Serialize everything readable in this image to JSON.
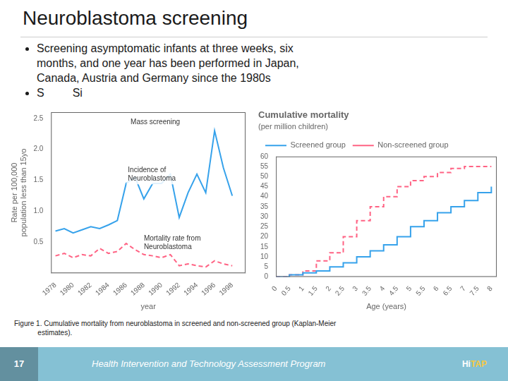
{
  "title": "Neuroblastoma screening",
  "bullets": [
    [
      "Screening asymptomatic infants at three weeks, six",
      "months, and one year has been performed in Japan,",
      "Canada, Austria and Germany since the 1980s"
    ],
    [
      "S",
      "Si"
    ]
  ],
  "caption": "Figure 1. Cumulative mortality from neuroblastoma in screened and non-screened group (Kaplan-Meier\n            estimates).",
  "footer": {
    "page_number": "17",
    "text": "Health Intervention and Technology Assessment Program",
    "logo": [
      "Hi",
      "TAP"
    ],
    "color": "#85C1D4"
  },
  "chart_data": [
    {
      "type": "line",
      "xlabel": "year",
      "ylabel": "Rate per 100,000\npopulation less than 15yo",
      "x": [
        1978,
        1979,
        1980,
        1981,
        1982,
        1983,
        1984,
        1985,
        1986,
        1987,
        1988,
        1989,
        1990,
        1991,
        1992,
        1993,
        1994,
        1995,
        1996,
        1997,
        1998
      ],
      "series": [
        {
          "line_style": "solid",
          "values": [
            0.68,
            0.72,
            0.65,
            0.7,
            0.75,
            0.72,
            0.78,
            0.85,
            1.45,
            1.55,
            1.2,
            1.45,
            1.45,
            1.6,
            0.9,
            1.3,
            1.6,
            1.3,
            2.3,
            1.7,
            1.25
          ]
        },
        {
          "line_style": "dashed",
          "values": [
            0.28,
            0.32,
            0.25,
            0.3,
            0.28,
            0.4,
            0.32,
            0.35,
            0.48,
            0.38,
            0.3,
            0.28,
            0.25,
            0.3,
            0.12,
            0.15,
            0.12,
            0.1,
            0.2,
            0.15,
            0.12
          ]
        }
      ],
      "xlim": [
        1977.5,
        1999.5
      ],
      "xticks": [
        1978,
        1980,
        1982,
        1984,
        1986,
        1988,
        1990,
        1992,
        1994,
        1996,
        1998
      ],
      "ylim": [
        0,
        2.6
      ],
      "yticks": [
        0.5,
        {
          "value": 1,
          "label": "1.0"
        },
        1.5,
        {
          "value": 2,
          "label": "2.0"
        },
        2.5
      ],
      "grid": false,
      "annotations": [
        {
          "text": "Mass screening",
          "x": 1986.5,
          "y": 2.5
        },
        {
          "text": "Incidence of\nNeuroblastoma",
          "x": 1986.2,
          "y": 1.72
        },
        {
          "text": "Mortality rate from\nNeuroblastoma",
          "x": 1988,
          "y": 0.62
        }
      ]
    },
    {
      "type": "step",
      "title": "Cumulative mortality",
      "subtitle": "(per million children)",
      "xlabel": "Age (years)",
      "x": [
        0,
        0.5,
        1,
        1.5,
        2,
        2.5,
        3,
        3.5,
        4,
        4.5,
        5,
        5.5,
        6,
        6.5,
        7,
        7.5,
        8
      ],
      "series": [
        {
          "name": "Screened group",
          "line_style": "solid",
          "values": [
            0,
            1,
            2,
            3,
            5,
            7,
            10,
            13,
            16,
            20,
            25,
            28,
            32,
            35,
            38,
            42,
            45
          ]
        },
        {
          "name": "Non-screened group",
          "line_style": "dashed",
          "values": [
            0,
            1,
            3,
            8,
            12,
            20,
            28,
            35,
            40,
            45,
            48,
            50,
            52,
            54,
            55,
            55,
            55
          ]
        }
      ],
      "xlim": [
        0,
        8.2
      ],
      "xticks": [
        0,
        0.5,
        1,
        1.5,
        2,
        2.5,
        3,
        3.5,
        4,
        4.5,
        5,
        5.5,
        6,
        6.5,
        7,
        7.5,
        8
      ],
      "ylim": [
        0,
        60
      ],
      "yticks": [
        0,
        5,
        10,
        15,
        20,
        25,
        30,
        35,
        40,
        45,
        50,
        55,
        60
      ],
      "grid": false,
      "legend": "upper left"
    }
  ]
}
